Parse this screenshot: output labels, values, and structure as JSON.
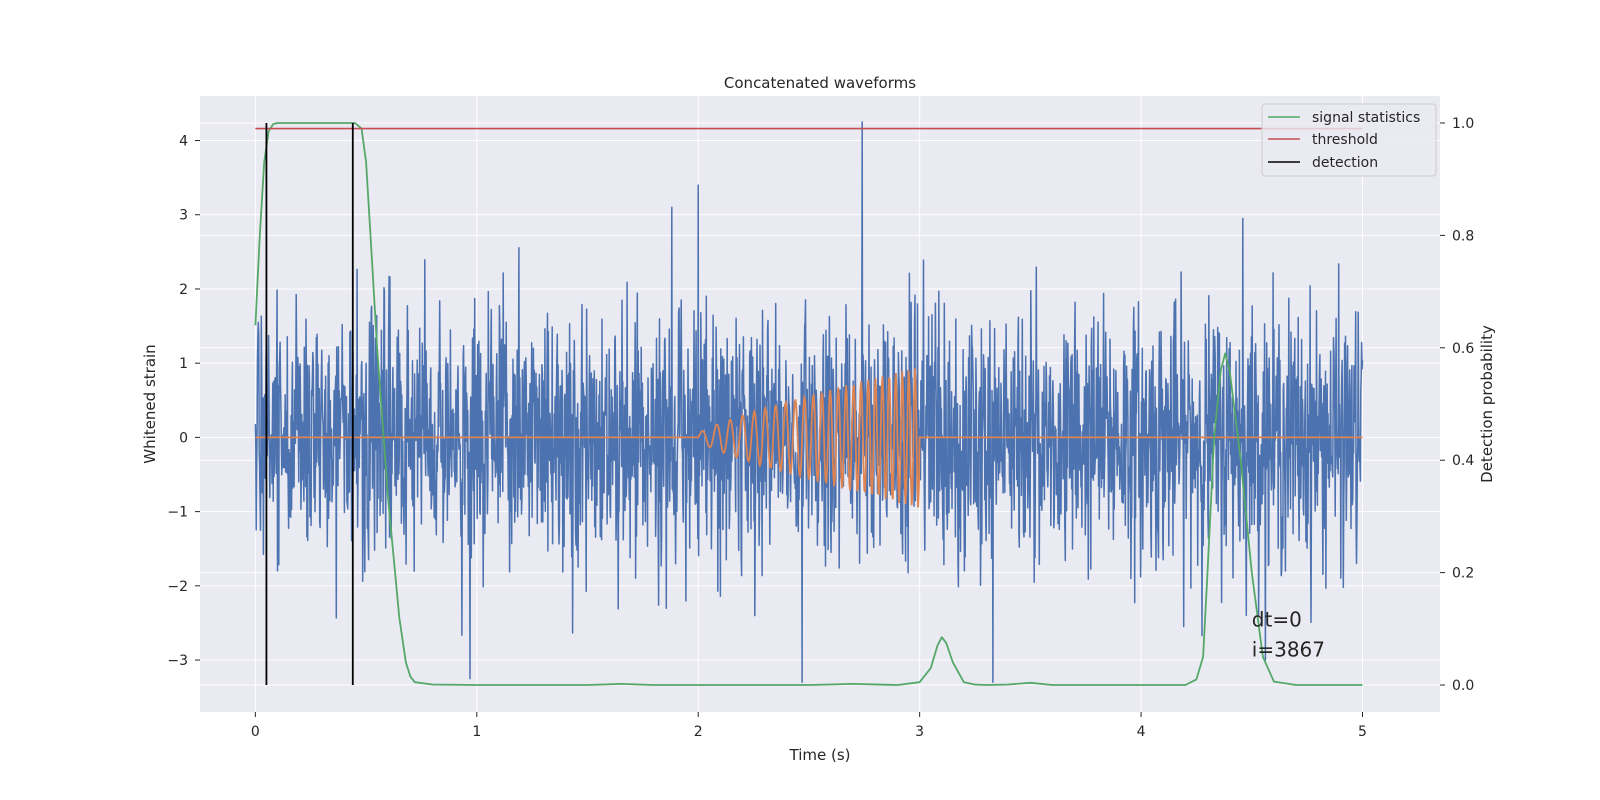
{
  "chart_data": {
    "type": "line",
    "title": "Concatenated waveforms",
    "xlabel": "Time (s)",
    "ylabel": "Whitened strain",
    "y2label": "Detection probability",
    "xlim": [
      -0.25,
      5.35
    ],
    "ylim": [
      -3.7,
      4.6
    ],
    "y2lim": [
      -0.048,
      1.048
    ],
    "x_ticks": [
      0,
      1,
      2,
      3,
      4,
      5
    ],
    "y_ticks": [
      -3,
      -2,
      -1,
      0,
      1,
      2,
      3,
      4
    ],
    "y2_ticks": [
      0.0,
      0.2,
      0.4,
      0.6,
      0.8,
      1.0
    ],
    "grid": true,
    "legend_position": "top-right",
    "colors": {
      "strain": "#4c72b0",
      "injection": "#dd8452",
      "statistics": "#55a868",
      "threshold": "#c44e52",
      "detection": "#000000",
      "plot_bg": "#eaeaf2",
      "grid": "#ffffff"
    },
    "series": [
      {
        "name": "",
        "kind": "strain",
        "axis": "left",
        "x_range": [
          0,
          5
        ],
        "amplitude_sd": 0.85,
        "spikes": [
          {
            "x": 2.74,
            "y": 4.25
          },
          {
            "x": 2.47,
            "y": -3.3
          },
          {
            "x": 3.33,
            "y": -3.3
          },
          {
            "x": 0.97,
            "y": -3.25
          },
          {
            "x": 2.0,
            "y": 3.4
          },
          {
            "x": 1.88,
            "y": 3.1
          },
          {
            "x": 4.46,
            "y": 2.95
          }
        ]
      },
      {
        "name": "",
        "kind": "injection",
        "axis": "left",
        "x_range": [
          0,
          5
        ],
        "chirp_start": 2.0,
        "chirp_end": 3.0,
        "amp_start": 0.05,
        "amp_end": 0.95
      },
      {
        "name": "signal statistics",
        "kind": "statistics",
        "axis": "right",
        "x": [
          0.0,
          0.02,
          0.04,
          0.06,
          0.08,
          0.1,
          0.2,
          0.3,
          0.4,
          0.45,
          0.48,
          0.5,
          0.52,
          0.55,
          0.6,
          0.65,
          0.68,
          0.7,
          0.72,
          0.8,
          1.0,
          1.5,
          1.65,
          1.8,
          2.0,
          2.5,
          2.7,
          2.9,
          3.0,
          3.05,
          3.08,
          3.1,
          3.12,
          3.15,
          3.2,
          3.25,
          3.3,
          3.4,
          3.5,
          3.6,
          4.0,
          4.2,
          4.25,
          4.28,
          4.3,
          4.33,
          4.36,
          4.38,
          4.4,
          4.45,
          4.5,
          4.55,
          4.6,
          4.7,
          5.0
        ],
        "y": [
          0.64,
          0.8,
          0.93,
          0.985,
          0.998,
          1.0,
          1.0,
          1.0,
          1.0,
          1.0,
          0.99,
          0.93,
          0.8,
          0.6,
          0.33,
          0.12,
          0.04,
          0.015,
          0.005,
          0.001,
          0.0,
          0.0,
          0.002,
          0.0,
          0.0,
          0.0,
          0.002,
          0.0,
          0.005,
          0.03,
          0.07,
          0.085,
          0.075,
          0.04,
          0.005,
          0.001,
          0.0,
          0.001,
          0.004,
          0.0,
          0.0,
          0.0,
          0.01,
          0.05,
          0.2,
          0.44,
          0.56,
          0.59,
          0.56,
          0.4,
          0.2,
          0.05,
          0.006,
          0.0,
          0.0
        ]
      },
      {
        "name": "threshold",
        "kind": "threshold",
        "axis": "right",
        "x": [
          0,
          5
        ],
        "y": [
          0.99,
          0.99
        ]
      },
      {
        "name": "detection",
        "kind": "detection",
        "axis": "right",
        "x": [
          0.05,
          0.44
        ],
        "ymin": 0.0,
        "ymax": 1.0
      }
    ],
    "annotations": [
      {
        "text": "dt=0",
        "x": 4.5,
        "y": -2.55
      },
      {
        "text": "i=3867",
        "x": 4.5,
        "y": -2.95
      }
    ]
  }
}
